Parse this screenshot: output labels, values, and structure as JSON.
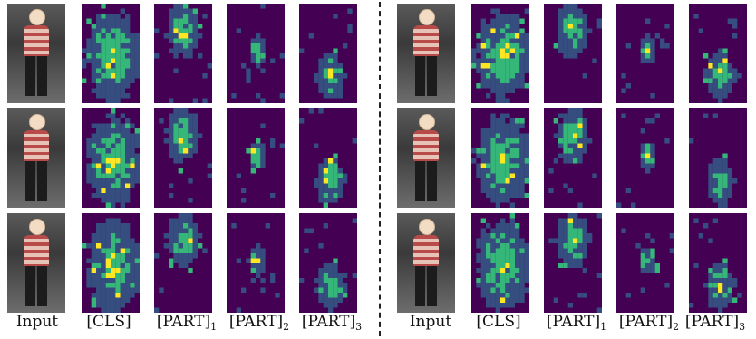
{
  "figure": {
    "columns": [
      {
        "label": "Input",
        "sub": ""
      },
      {
        "label": "[CLS]",
        "sub": ""
      },
      {
        "label": "[PART]",
        "sub": "1"
      },
      {
        "label": "[PART]",
        "sub": "2"
      },
      {
        "label": "[PART]",
        "sub": "3"
      }
    ],
    "colors": {
      "background": "#440154",
      "low": "#31688e",
      "mid": "#35b779",
      "high": "#fde725"
    }
  }
}
